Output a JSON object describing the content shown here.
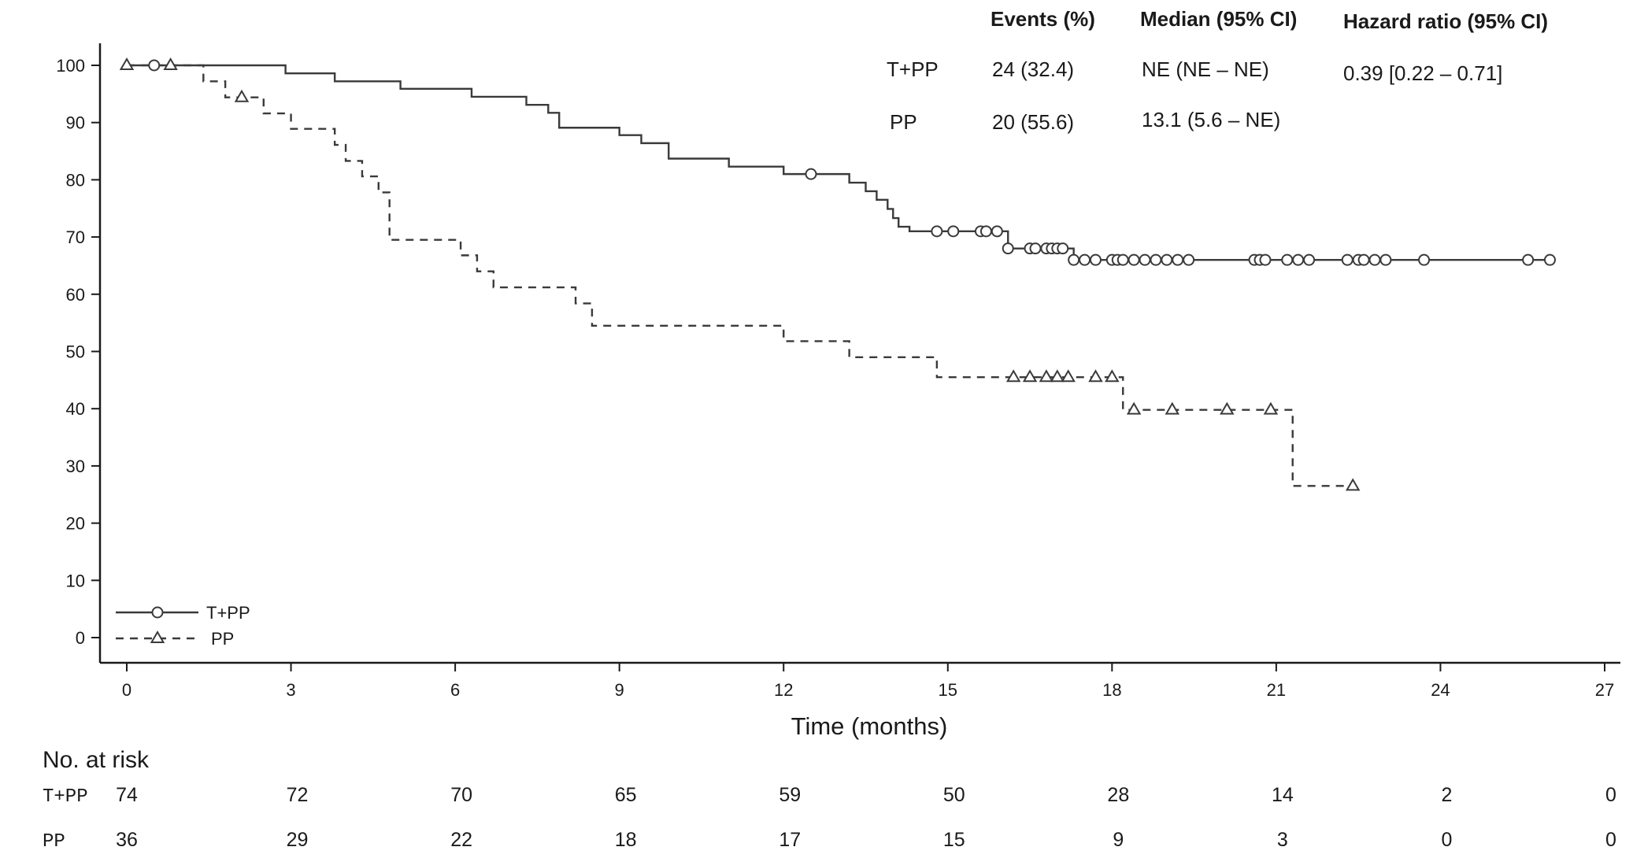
{
  "chart_data": {
    "type": "line",
    "title": "",
    "xlabel": "Time (months)",
    "ylabel": "",
    "xlim": [
      -1,
      27
    ],
    "ylim": [
      -3,
      105
    ],
    "xticks": [
      0,
      3,
      6,
      9,
      12,
      15,
      18,
      21,
      24,
      27
    ],
    "yticks": [
      0,
      10,
      20,
      30,
      40,
      50,
      60,
      70,
      80,
      90,
      100
    ],
    "legend_position": "bottom-left",
    "series": [
      {
        "name": "T+PP",
        "line_style": "solid",
        "marker": "circle",
        "color": "#3a3a3a",
        "steps": [
          [
            0,
            100
          ],
          [
            2.9,
            98.6
          ],
          [
            3.8,
            97.2
          ],
          [
            5,
            95.9
          ],
          [
            6.3,
            94.5
          ],
          [
            7.3,
            93.1
          ],
          [
            7.7,
            91.7
          ],
          [
            7.9,
            89.1
          ],
          [
            9,
            87.8
          ],
          [
            9.4,
            86.4
          ],
          [
            9.9,
            83.7
          ],
          [
            11,
            82.3
          ],
          [
            12,
            81
          ],
          [
            13.2,
            79.5
          ],
          [
            13.5,
            78.0
          ],
          [
            13.7,
            76.5
          ],
          [
            13.9,
            74.9
          ],
          [
            14,
            73.3
          ],
          [
            14.1,
            71.8
          ],
          [
            14.3,
            71
          ],
          [
            16.1,
            68
          ],
          [
            17.3,
            66
          ],
          [
            26,
            66
          ]
        ],
        "censored_x": [
          0.5,
          12.5,
          14.8,
          15.1,
          15.6,
          15.7,
          15.9,
          16.1,
          16.5,
          16.6,
          16.8,
          16.9,
          17.0,
          17.1,
          17.3,
          17.5,
          17.7,
          18.0,
          18.1,
          18.2,
          18.4,
          18.6,
          18.8,
          19.0,
          19.2,
          19.4,
          20.6,
          20.7,
          20.8,
          21.2,
          21.4,
          21.6,
          22.3,
          22.5,
          22.6,
          22.8,
          23.0,
          23.7,
          25.6,
          26.0
        ]
      },
      {
        "name": "PP",
        "line_style": "dashed",
        "marker": "triangle",
        "color": "#3a3a3a",
        "steps": [
          [
            0,
            100
          ],
          [
            1.4,
            97.2
          ],
          [
            1.8,
            94.4
          ],
          [
            2.5,
            91.6
          ],
          [
            3,
            88.9
          ],
          [
            3.8,
            86.1
          ],
          [
            4,
            83.3
          ],
          [
            4.3,
            80.6
          ],
          [
            4.6,
            77.8
          ],
          [
            4.8,
            75
          ],
          [
            4.8,
            69.5
          ],
          [
            6.1,
            66.8
          ],
          [
            6.4,
            64
          ],
          [
            6.7,
            61.2
          ],
          [
            8.2,
            58.4
          ],
          [
            8.5,
            54.5
          ],
          [
            12,
            51.8
          ],
          [
            13.2,
            49
          ],
          [
            14.8,
            45.5
          ],
          [
            18.2,
            39.8
          ],
          [
            21.3,
            26.5
          ],
          [
            22.4,
            26.5
          ]
        ],
        "censored_x": [
          0,
          0.8,
          2.1,
          16.2,
          16.5,
          16.8,
          17.0,
          17.2,
          17.7,
          18.0,
          18.4,
          19.1,
          20.1,
          20.9,
          22.4
        ]
      }
    ],
    "stats_table": {
      "headers": [
        "Events  (%)",
        "Median  (95% CI)",
        "Hazard ratio  (95% CI)"
      ],
      "rows": [
        {
          "group": "T+PP",
          "events": "24 (32.4)",
          "median": "NE (NE – NE)",
          "hr": "0.39 [0.22 – 0.71]"
        },
        {
          "group": "PP",
          "events": "20 (55.6)",
          "median": "13.1 (5.6 – NE)",
          "hr": ""
        }
      ]
    },
    "risk_table": {
      "title": "No. at risk",
      "x": [
        0,
        3,
        6,
        9,
        12,
        15,
        18,
        21,
        24,
        27
      ],
      "rows": [
        {
          "label": "T+PP",
          "values": [
            "74",
            "72",
            "70",
            "65",
            "59",
            "50",
            "28",
            "14",
            "2",
            "0"
          ]
        },
        {
          "label": "PP",
          "values": [
            "36",
            "29",
            "22",
            "18",
            "17",
            "15",
            "9",
            "3",
            "0",
            "0"
          ]
        }
      ]
    }
  }
}
